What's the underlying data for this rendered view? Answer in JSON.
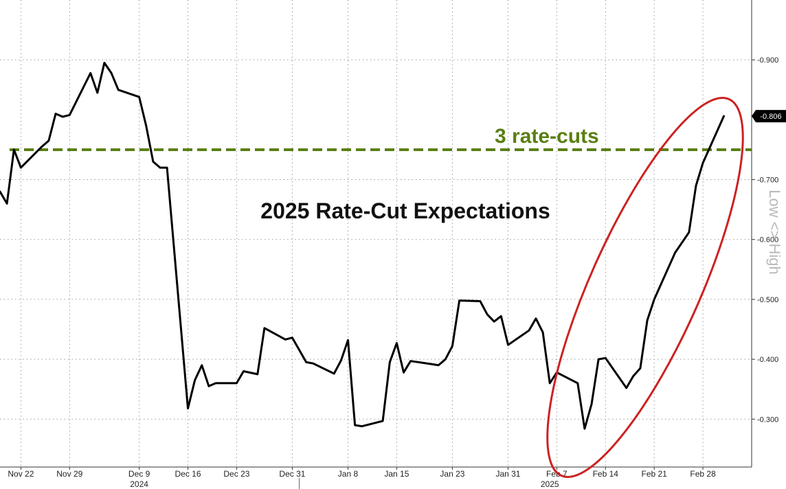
{
  "chart_data": {
    "type": "line",
    "title": "2025 Rate-Cut Expectations",
    "ylabel": "Low <> High",
    "ylim": [
      0.22,
      1.0
    ],
    "y_ticks": [
      0.3,
      0.4,
      0.5,
      0.6,
      0.7,
      0.9
    ],
    "y_tick_labels": [
      "-0.300",
      "-0.400",
      "-0.500",
      "-0.600",
      "-0.700",
      "-0.900"
    ],
    "x_ticks": [
      {
        "date": "2024-11-22",
        "label": "Nov 22"
      },
      {
        "date": "2024-11-29",
        "label": "Nov 29"
      },
      {
        "date": "2024-12-09",
        "label": "Dec 9"
      },
      {
        "date": "2024-12-16",
        "label": "Dec 16"
      },
      {
        "date": "2024-12-23",
        "label": "Dec 23"
      },
      {
        "date": "2024-12-31",
        "label": "Dec 31"
      },
      {
        "date": "2025-01-08",
        "label": "Jan 8"
      },
      {
        "date": "2025-01-15",
        "label": "Jan 15"
      },
      {
        "date": "2025-01-23",
        "label": "Jan 23"
      },
      {
        "date": "2025-01-31",
        "label": "Jan 31"
      },
      {
        "date": "2025-02-07",
        "label": "Feb 7"
      },
      {
        "date": "2025-02-14",
        "label": "Feb 14"
      },
      {
        "date": "2025-02-21",
        "label": "Feb 21"
      },
      {
        "date": "2025-02-28",
        "label": "Feb 28"
      }
    ],
    "year_labels": [
      {
        "date": "2024-12-09",
        "label": "2024"
      },
      {
        "date": "2025-02-06",
        "label": "2025"
      }
    ],
    "year_separator_date": "2025-01-01",
    "grid": true,
    "reference_line": {
      "y": 0.75,
      "label": "3 rate-cuts",
      "color": "#5a7f12"
    },
    "last_value_label": "-0.806",
    "highlight": {
      "type": "ellipse",
      "from_date": "2025-02-07",
      "to_date": "2025-03-04",
      "color": "#cc2222"
    },
    "series": [
      {
        "color": "#000000",
        "points": [
          [
            "2024-11-19",
            0.68
          ],
          [
            "2024-11-20",
            0.66
          ],
          [
            "2024-11-21",
            0.75
          ],
          [
            "2024-11-22",
            0.72
          ],
          [
            "2024-11-25",
            0.755
          ],
          [
            "2024-11-26",
            0.765
          ],
          [
            "2024-11-27",
            0.81
          ],
          [
            "2024-11-28",
            0.805
          ],
          [
            "2024-11-29",
            0.808
          ],
          [
            "2024-12-02",
            0.878
          ],
          [
            "2024-12-03",
            0.845
          ],
          [
            "2024-12-04",
            0.895
          ],
          [
            "2024-12-05",
            0.878
          ],
          [
            "2024-12-06",
            0.85
          ],
          [
            "2024-12-09",
            0.838
          ],
          [
            "2024-12-10",
            0.79
          ],
          [
            "2024-12-11",
            0.73
          ],
          [
            "2024-12-12",
            0.72
          ],
          [
            "2024-12-13",
            0.72
          ],
          [
            "2024-12-16",
            0.318
          ],
          [
            "2024-12-17",
            0.365
          ],
          [
            "2024-12-18",
            0.39
          ],
          [
            "2024-12-19",
            0.355
          ],
          [
            "2024-12-20",
            0.36
          ],
          [
            "2024-12-23",
            0.36
          ],
          [
            "2024-12-24",
            0.38
          ],
          [
            "2024-12-26",
            0.375
          ],
          [
            "2024-12-27",
            0.452
          ],
          [
            "2024-12-30",
            0.433
          ],
          [
            "2024-12-31",
            0.436
          ],
          [
            "2025-01-02",
            0.395
          ],
          [
            "2025-01-03",
            0.393
          ],
          [
            "2025-01-06",
            0.376
          ],
          [
            "2025-01-07",
            0.398
          ],
          [
            "2025-01-08",
            0.432
          ],
          [
            "2025-01-09",
            0.29
          ],
          [
            "2025-01-10",
            0.288
          ],
          [
            "2025-01-13",
            0.297
          ],
          [
            "2025-01-14",
            0.395
          ],
          [
            "2025-01-15",
            0.427
          ],
          [
            "2025-01-16",
            0.378
          ],
          [
            "2025-01-17",
            0.397
          ],
          [
            "2025-01-20",
            0.392
          ],
          [
            "2025-01-21",
            0.39
          ],
          [
            "2025-01-22",
            0.4
          ],
          [
            "2025-01-23",
            0.422
          ],
          [
            "2025-01-24",
            0.498
          ],
          [
            "2025-01-27",
            0.497
          ],
          [
            "2025-01-28",
            0.475
          ],
          [
            "2025-01-29",
            0.463
          ],
          [
            "2025-01-30",
            0.472
          ],
          [
            "2025-01-31",
            0.424
          ],
          [
            "2025-02-03",
            0.448
          ],
          [
            "2025-02-04",
            0.468
          ],
          [
            "2025-02-05",
            0.445
          ],
          [
            "2025-02-06",
            0.36
          ],
          [
            "2025-02-07",
            0.378
          ],
          [
            "2025-02-10",
            0.36
          ],
          [
            "2025-02-11",
            0.284
          ],
          [
            "2025-02-12",
            0.325
          ],
          [
            "2025-02-13",
            0.4
          ],
          [
            "2025-02-14",
            0.402
          ],
          [
            "2025-02-17",
            0.352
          ],
          [
            "2025-02-18",
            0.372
          ],
          [
            "2025-02-19",
            0.385
          ],
          [
            "2025-02-20",
            0.465
          ],
          [
            "2025-02-21",
            0.5
          ],
          [
            "2025-02-24",
            0.578
          ],
          [
            "2025-02-25",
            0.595
          ],
          [
            "2025-02-26",
            0.612
          ],
          [
            "2025-02-27",
            0.69
          ],
          [
            "2025-02-28",
            0.728
          ],
          [
            "2025-03-03",
            0.806
          ]
        ]
      }
    ]
  }
}
